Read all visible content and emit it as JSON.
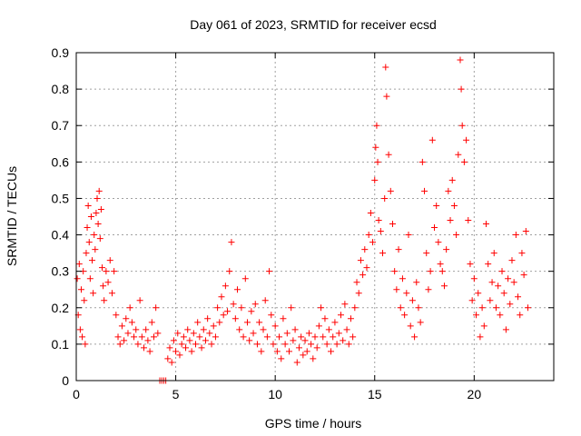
{
  "chart_data": {
    "type": "scatter",
    "title": "Day 061 of 2023, SRMTID for receiver ecsd",
    "xlabel": "GPS time / hours",
    "ylabel": "SRMTID / TECUs",
    "xlim": [
      0,
      24
    ],
    "ylim": [
      0,
      0.9
    ],
    "x_ticks": [
      0,
      5,
      10,
      15,
      20
    ],
    "x_tick_labels": [
      "0",
      "5",
      "10",
      "15",
      "20"
    ],
    "y_ticks": [
      0,
      0.1,
      0.2,
      0.3,
      0.4,
      0.5,
      0.6,
      0.7,
      0.8,
      0.9
    ],
    "y_tick_labels": [
      "0",
      "0.1",
      "0.2",
      "0.3",
      "0.4",
      "0.5",
      "0.6",
      "0.7",
      "0.8",
      "0.9"
    ],
    "grid": true,
    "marker": "plus",
    "color": "#ff0000",
    "series": [
      {
        "name": "SRMTID",
        "points": [
          [
            0.05,
            0.28
          ],
          [
            0.1,
            0.18
          ],
          [
            0.15,
            0.32
          ],
          [
            0.2,
            0.14
          ],
          [
            0.25,
            0.25
          ],
          [
            0.3,
            0.12
          ],
          [
            0.35,
            0.3
          ],
          [
            0.4,
            0.22
          ],
          [
            0.45,
            0.1
          ],
          [
            0.5,
            0.35
          ],
          [
            0.55,
            0.42
          ],
          [
            0.6,
            0.48
          ],
          [
            0.65,
            0.38
          ],
          [
            0.7,
            0.28
          ],
          [
            0.75,
            0.45
          ],
          [
            0.8,
            0.33
          ],
          [
            0.85,
            0.24
          ],
          [
            0.9,
            0.4
          ],
          [
            0.95,
            0.36
          ],
          [
            1.0,
            0.46
          ],
          [
            1.05,
            0.5
          ],
          [
            1.1,
            0.43
          ],
          [
            1.15,
            0.52
          ],
          [
            1.2,
            0.39
          ],
          [
            1.25,
            0.47
          ],
          [
            1.3,
            0.31
          ],
          [
            1.35,
            0.26
          ],
          [
            1.4,
            0.22
          ],
          [
            1.5,
            0.3
          ],
          [
            1.6,
            0.27
          ],
          [
            1.7,
            0.33
          ],
          [
            1.8,
            0.24
          ],
          [
            1.9,
            0.3
          ],
          [
            2.0,
            0.18
          ],
          [
            2.1,
            0.12
          ],
          [
            2.2,
            0.1
          ],
          [
            2.3,
            0.15
          ],
          [
            2.4,
            0.11
          ],
          [
            2.5,
            0.17
          ],
          [
            2.6,
            0.13
          ],
          [
            2.7,
            0.2
          ],
          [
            2.8,
            0.16
          ],
          [
            2.9,
            0.12
          ],
          [
            3.0,
            0.14
          ],
          [
            3.1,
            0.1
          ],
          [
            3.2,
            0.22
          ],
          [
            3.3,
            0.12
          ],
          [
            3.4,
            0.09
          ],
          [
            3.5,
            0.14
          ],
          [
            3.6,
            0.11
          ],
          [
            3.7,
            0.08
          ],
          [
            3.8,
            0.16
          ],
          [
            3.9,
            0.12
          ],
          [
            4.0,
            0.2
          ],
          [
            4.1,
            0.13
          ],
          [
            4.2,
            0.0
          ],
          [
            4.3,
            0.0
          ],
          [
            4.4,
            0.0
          ],
          [
            4.5,
            0.0
          ],
          [
            4.6,
            0.06
          ],
          [
            4.7,
            0.09
          ],
          [
            4.8,
            0.05
          ],
          [
            4.9,
            0.11
          ],
          [
            5.0,
            0.08
          ],
          [
            5.1,
            0.13
          ],
          [
            5.2,
            0.07
          ],
          [
            5.3,
            0.1
          ],
          [
            5.4,
            0.12
          ],
          [
            5.5,
            0.09
          ],
          [
            5.6,
            0.14
          ],
          [
            5.7,
            0.11
          ],
          [
            5.8,
            0.08
          ],
          [
            5.9,
            0.13
          ],
          [
            6.0,
            0.1
          ],
          [
            6.1,
            0.16
          ],
          [
            6.2,
            0.12
          ],
          [
            6.3,
            0.09
          ],
          [
            6.4,
            0.14
          ],
          [
            6.5,
            0.11
          ],
          [
            6.6,
            0.17
          ],
          [
            6.7,
            0.13
          ],
          [
            6.8,
            0.1
          ],
          [
            6.9,
            0.15
          ],
          [
            7.0,
            0.12
          ],
          [
            7.1,
            0.2
          ],
          [
            7.2,
            0.16
          ],
          [
            7.3,
            0.23
          ],
          [
            7.4,
            0.18
          ],
          [
            7.5,
            0.26
          ],
          [
            7.6,
            0.19
          ],
          [
            7.7,
            0.3
          ],
          [
            7.8,
            0.38
          ],
          [
            7.9,
            0.21
          ],
          [
            8.0,
            0.17
          ],
          [
            8.1,
            0.25
          ],
          [
            8.2,
            0.14
          ],
          [
            8.3,
            0.2
          ],
          [
            8.4,
            0.12
          ],
          [
            8.5,
            0.28
          ],
          [
            8.6,
            0.16
          ],
          [
            8.7,
            0.11
          ],
          [
            8.8,
            0.19
          ],
          [
            8.9,
            0.13
          ],
          [
            9.0,
            0.21
          ],
          [
            9.1,
            0.1
          ],
          [
            9.2,
            0.16
          ],
          [
            9.3,
            0.08
          ],
          [
            9.4,
            0.14
          ],
          [
            9.5,
            0.22
          ],
          [
            9.6,
            0.12
          ],
          [
            9.7,
            0.3
          ],
          [
            9.8,
            0.18
          ],
          [
            9.9,
            0.1
          ],
          [
            10.0,
            0.15
          ],
          [
            10.1,
            0.08
          ],
          [
            10.2,
            0.12
          ],
          [
            10.3,
            0.06
          ],
          [
            10.4,
            0.17
          ],
          [
            10.5,
            0.1
          ],
          [
            10.6,
            0.13
          ],
          [
            10.7,
            0.08
          ],
          [
            10.8,
            0.2
          ],
          [
            10.9,
            0.11
          ],
          [
            11.0,
            0.14
          ],
          [
            11.1,
            0.05
          ],
          [
            11.2,
            0.09
          ],
          [
            11.3,
            0.12
          ],
          [
            11.4,
            0.07
          ],
          [
            11.5,
            0.11
          ],
          [
            11.6,
            0.08
          ],
          [
            11.7,
            0.13
          ],
          [
            11.8,
            0.1
          ],
          [
            11.9,
            0.06
          ],
          [
            12.0,
            0.12
          ],
          [
            12.1,
            0.09
          ],
          [
            12.2,
            0.15
          ],
          [
            12.3,
            0.2
          ],
          [
            12.4,
            0.12
          ],
          [
            12.5,
            0.17
          ],
          [
            12.6,
            0.1
          ],
          [
            12.7,
            0.14
          ],
          [
            12.8,
            0.08
          ],
          [
            12.9,
            0.12
          ],
          [
            13.0,
            0.16
          ],
          [
            13.1,
            0.1
          ],
          [
            13.2,
            0.13
          ],
          [
            13.3,
            0.18
          ],
          [
            13.4,
            0.11
          ],
          [
            13.5,
            0.21
          ],
          [
            13.6,
            0.14
          ],
          [
            13.7,
            0.1
          ],
          [
            13.8,
            0.17
          ],
          [
            13.9,
            0.12
          ],
          [
            14.0,
            0.2
          ],
          [
            14.1,
            0.27
          ],
          [
            14.2,
            0.24
          ],
          [
            14.3,
            0.33
          ],
          [
            14.4,
            0.29
          ],
          [
            14.5,
            0.36
          ],
          [
            14.6,
            0.31
          ],
          [
            14.7,
            0.4
          ],
          [
            14.8,
            0.46
          ],
          [
            14.9,
            0.38
          ],
          [
            15.0,
            0.55
          ],
          [
            15.05,
            0.64
          ],
          [
            15.1,
            0.7
          ],
          [
            15.15,
            0.6
          ],
          [
            15.2,
            0.44
          ],
          [
            15.3,
            0.41
          ],
          [
            15.4,
            0.35
          ],
          [
            15.5,
            0.5
          ],
          [
            15.55,
            0.86
          ],
          [
            15.6,
            0.78
          ],
          [
            15.7,
            0.62
          ],
          [
            15.8,
            0.52
          ],
          [
            15.9,
            0.43
          ],
          [
            16.0,
            0.3
          ],
          [
            16.1,
            0.25
          ],
          [
            16.2,
            0.36
          ],
          [
            16.3,
            0.2
          ],
          [
            16.4,
            0.28
          ],
          [
            16.5,
            0.18
          ],
          [
            16.6,
            0.24
          ],
          [
            16.7,
            0.4
          ],
          [
            16.8,
            0.15
          ],
          [
            16.9,
            0.22
          ],
          [
            17.0,
            0.12
          ],
          [
            17.1,
            0.27
          ],
          [
            17.2,
            0.2
          ],
          [
            17.3,
            0.16
          ],
          [
            17.4,
            0.6
          ],
          [
            17.5,
            0.52
          ],
          [
            17.6,
            0.35
          ],
          [
            17.7,
            0.25
          ],
          [
            17.8,
            0.3
          ],
          [
            17.9,
            0.66
          ],
          [
            18.0,
            0.42
          ],
          [
            18.1,
            0.48
          ],
          [
            18.2,
            0.38
          ],
          [
            18.3,
            0.32
          ],
          [
            18.4,
            0.3
          ],
          [
            18.5,
            0.26
          ],
          [
            18.6,
            0.36
          ],
          [
            18.7,
            0.52
          ],
          [
            18.8,
            0.44
          ],
          [
            18.9,
            0.55
          ],
          [
            19.0,
            0.48
          ],
          [
            19.1,
            0.4
          ],
          [
            19.2,
            0.62
          ],
          [
            19.3,
            0.88
          ],
          [
            19.35,
            0.8
          ],
          [
            19.4,
            0.7
          ],
          [
            19.5,
            0.6
          ],
          [
            19.6,
            0.66
          ],
          [
            19.7,
            0.44
          ],
          [
            19.8,
            0.32
          ],
          [
            19.9,
            0.22
          ],
          [
            20.0,
            0.28
          ],
          [
            20.1,
            0.18
          ],
          [
            20.2,
            0.24
          ],
          [
            20.3,
            0.12
          ],
          [
            20.4,
            0.2
          ],
          [
            20.5,
            0.15
          ],
          [
            20.6,
            0.43
          ],
          [
            20.7,
            0.32
          ],
          [
            20.8,
            0.22
          ],
          [
            20.9,
            0.27
          ],
          [
            21.0,
            0.35
          ],
          [
            21.1,
            0.2
          ],
          [
            21.2,
            0.26
          ],
          [
            21.3,
            0.18
          ],
          [
            21.4,
            0.3
          ],
          [
            21.5,
            0.24
          ],
          [
            21.6,
            0.14
          ],
          [
            21.7,
            0.28
          ],
          [
            21.8,
            0.21
          ],
          [
            21.9,
            0.33
          ],
          [
            22.0,
            0.27
          ],
          [
            22.1,
            0.4
          ],
          [
            22.2,
            0.23
          ],
          [
            22.3,
            0.18
          ],
          [
            22.4,
            0.35
          ],
          [
            22.5,
            0.29
          ],
          [
            22.6,
            0.41
          ],
          [
            22.7,
            0.2
          ]
        ]
      }
    ]
  }
}
